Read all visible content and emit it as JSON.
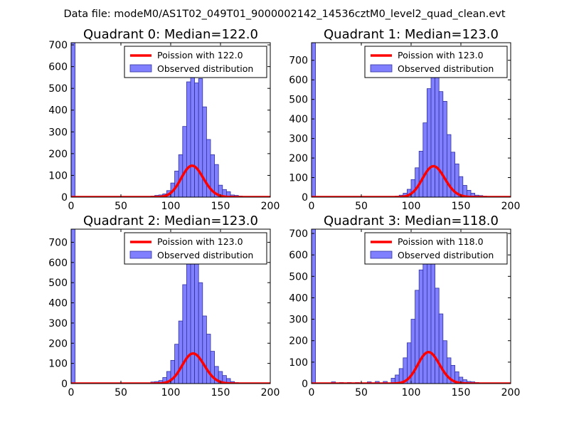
{
  "figure_title": "Data file: modeM0/AS1T02_049T01_9000002142_14536cztM0_level2_quad_clean.evt",
  "colors": {
    "bar_fill": "#8080ff",
    "bar_edge": "#3030a0",
    "poisson_line": "#ff0000",
    "poisson_line_bg": "#ff8080",
    "axes": "#000000",
    "background": "#ffffff"
  },
  "chart_data": [
    {
      "type": "bar",
      "title": "Quadrant 0: Median=122.0",
      "xlim": [
        0,
        200
      ],
      "ylim": [
        0,
        710
      ],
      "xticks": [
        0,
        50,
        100,
        150,
        200
      ],
      "yticks": [
        0,
        100,
        200,
        300,
        400,
        500,
        600,
        700
      ],
      "xtick_labels": [
        "0",
        "50",
        "100",
        "150",
        "200"
      ],
      "ytick_labels": [
        "0",
        "100",
        "200",
        "300",
        "400",
        "500",
        "600",
        "700"
      ],
      "legend": {
        "position": "top-right",
        "line_label": "Poission with 122.0",
        "bar_label": "Observed distribution"
      },
      "median": 122.0,
      "poisson_mean": 122.0,
      "poisson_scale": 4000,
      "bin_width": 4,
      "bins": [
        {
          "x": 0,
          "count": 710
        },
        {
          "x": 80,
          "count": 5
        },
        {
          "x": 84,
          "count": 8
        },
        {
          "x": 88,
          "count": 10
        },
        {
          "x": 92,
          "count": 15
        },
        {
          "x": 96,
          "count": 30
        },
        {
          "x": 100,
          "count": 65
        },
        {
          "x": 104,
          "count": 120
        },
        {
          "x": 108,
          "count": 195
        },
        {
          "x": 112,
          "count": 325
        },
        {
          "x": 116,
          "count": 530
        },
        {
          "x": 120,
          "count": 575
        },
        {
          "x": 124,
          "count": 525
        },
        {
          "x": 128,
          "count": 545
        },
        {
          "x": 132,
          "count": 415
        },
        {
          "x": 136,
          "count": 265
        },
        {
          "x": 140,
          "count": 195
        },
        {
          "x": 144,
          "count": 150
        },
        {
          "x": 148,
          "count": 55
        },
        {
          "x": 152,
          "count": 35
        },
        {
          "x": 156,
          "count": 25
        },
        {
          "x": 160,
          "count": 10
        },
        {
          "x": 164,
          "count": 8
        },
        {
          "x": 168,
          "count": 5
        },
        {
          "x": 172,
          "count": 3
        },
        {
          "x": 176,
          "count": 2
        },
        {
          "x": 180,
          "count": 1
        }
      ]
    },
    {
      "type": "bar",
      "title": "Quadrant 1: Median=123.0",
      "xlim": [
        0,
        200
      ],
      "ylim": [
        0,
        790
      ],
      "xticks": [
        0,
        50,
        100,
        150,
        200
      ],
      "yticks": [
        0,
        100,
        200,
        300,
        400,
        500,
        600,
        700
      ],
      "xtick_labels": [
        "0",
        "50",
        "100",
        "150",
        "200"
      ],
      "ytick_labels": [
        "0",
        "100",
        "200",
        "300",
        "400",
        "500",
        "600",
        "700"
      ],
      "legend": {
        "position": "top-right",
        "line_label": "Poission with 123.0",
        "bar_label": "Observed distribution"
      },
      "median": 123.0,
      "poisson_mean": 123.0,
      "poisson_scale": 4400,
      "bin_width": 4,
      "bins": [
        {
          "x": 0,
          "count": 790
        },
        {
          "x": 80,
          "count": 3
        },
        {
          "x": 84,
          "count": 5
        },
        {
          "x": 88,
          "count": 10
        },
        {
          "x": 92,
          "count": 20
        },
        {
          "x": 96,
          "count": 40
        },
        {
          "x": 100,
          "count": 90
        },
        {
          "x": 104,
          "count": 150
        },
        {
          "x": 108,
          "count": 235
        },
        {
          "x": 112,
          "count": 380
        },
        {
          "x": 116,
          "count": 555
        },
        {
          "x": 120,
          "count": 660
        },
        {
          "x": 124,
          "count": 685
        },
        {
          "x": 128,
          "count": 540
        },
        {
          "x": 132,
          "count": 490
        },
        {
          "x": 136,
          "count": 320
        },
        {
          "x": 140,
          "count": 230
        },
        {
          "x": 144,
          "count": 170
        },
        {
          "x": 148,
          "count": 105
        },
        {
          "x": 152,
          "count": 60
        },
        {
          "x": 156,
          "count": 35
        },
        {
          "x": 160,
          "count": 20
        },
        {
          "x": 164,
          "count": 10
        },
        {
          "x": 168,
          "count": 8
        },
        {
          "x": 172,
          "count": 5
        },
        {
          "x": 176,
          "count": 3
        },
        {
          "x": 180,
          "count": 2
        }
      ]
    },
    {
      "type": "bar",
      "title": "Quadrant 2: Median=123.0",
      "xlim": [
        0,
        200
      ],
      "ylim": [
        0,
        765
      ],
      "xticks": [
        0,
        50,
        100,
        150,
        200
      ],
      "yticks": [
        0,
        100,
        200,
        300,
        400,
        500,
        600,
        700
      ],
      "xtick_labels": [
        "0",
        "50",
        "100",
        "150",
        "200"
      ],
      "ytick_labels": [
        "0",
        "100",
        "200",
        "300",
        "400",
        "500",
        "600",
        "700"
      ],
      "legend": {
        "position": "top-right",
        "line_label": "Poission with 123.0",
        "bar_label": "Observed distribution"
      },
      "median": 123.0,
      "poisson_mean": 123.0,
      "poisson_scale": 4150,
      "bin_width": 4,
      "bins": [
        {
          "x": 0,
          "count": 765
        },
        {
          "x": 80,
          "count": 8
        },
        {
          "x": 84,
          "count": 10
        },
        {
          "x": 88,
          "count": 15
        },
        {
          "x": 92,
          "count": 30
        },
        {
          "x": 96,
          "count": 60
        },
        {
          "x": 100,
          "count": 115
        },
        {
          "x": 104,
          "count": 195
        },
        {
          "x": 108,
          "count": 310
        },
        {
          "x": 112,
          "count": 490
        },
        {
          "x": 116,
          "count": 640
        },
        {
          "x": 120,
          "count": 685
        },
        {
          "x": 124,
          "count": 595
        },
        {
          "x": 128,
          "count": 500
        },
        {
          "x": 132,
          "count": 335
        },
        {
          "x": 136,
          "count": 245
        },
        {
          "x": 140,
          "count": 160
        },
        {
          "x": 144,
          "count": 85
        },
        {
          "x": 148,
          "count": 60
        },
        {
          "x": 152,
          "count": 40
        },
        {
          "x": 156,
          "count": 25
        },
        {
          "x": 160,
          "count": 10
        },
        {
          "x": 164,
          "count": 5
        },
        {
          "x": 168,
          "count": 3
        },
        {
          "x": 172,
          "count": 2
        },
        {
          "x": 176,
          "count": 1
        },
        {
          "x": 180,
          "count": 1
        }
      ]
    },
    {
      "type": "bar",
      "title": "Quadrant 3: Median=118.0",
      "xlim": [
        0,
        200
      ],
      "ylim": [
        0,
        720
      ],
      "xticks": [
        0,
        50,
        100,
        150,
        200
      ],
      "yticks": [
        0,
        100,
        200,
        300,
        400,
        500,
        600,
        700
      ],
      "xtick_labels": [
        "0",
        "50",
        "100",
        "150",
        "200"
      ],
      "ytick_labels": [
        "0",
        "100",
        "200",
        "300",
        "400",
        "500",
        "600",
        "700"
      ],
      "legend": {
        "position": "top-right",
        "line_label": "Poission with 118.0",
        "bar_label": "Observed distribution"
      },
      "median": 118.0,
      "poisson_mean": 118.0,
      "poisson_scale": 4000,
      "bin_width": 4,
      "bins": [
        {
          "x": 0,
          "count": 720
        },
        {
          "x": 20,
          "count": 8
        },
        {
          "x": 28,
          "count": 5
        },
        {
          "x": 36,
          "count": 5
        },
        {
          "x": 44,
          "count": 5
        },
        {
          "x": 56,
          "count": 8
        },
        {
          "x": 64,
          "count": 10
        },
        {
          "x": 72,
          "count": 10
        },
        {
          "x": 80,
          "count": 25
        },
        {
          "x": 84,
          "count": 40
        },
        {
          "x": 88,
          "count": 70
        },
        {
          "x": 92,
          "count": 120
        },
        {
          "x": 96,
          "count": 190
        },
        {
          "x": 100,
          "count": 300
        },
        {
          "x": 104,
          "count": 435
        },
        {
          "x": 108,
          "count": 530
        },
        {
          "x": 112,
          "count": 590
        },
        {
          "x": 116,
          "count": 660
        },
        {
          "x": 120,
          "count": 620
        },
        {
          "x": 124,
          "count": 445
        },
        {
          "x": 128,
          "count": 325
        },
        {
          "x": 132,
          "count": 200
        },
        {
          "x": 136,
          "count": 120
        },
        {
          "x": 140,
          "count": 85
        },
        {
          "x": 144,
          "count": 55
        },
        {
          "x": 148,
          "count": 30
        },
        {
          "x": 152,
          "count": 18
        },
        {
          "x": 156,
          "count": 10
        },
        {
          "x": 160,
          "count": 8
        },
        {
          "x": 164,
          "count": 5
        },
        {
          "x": 168,
          "count": 3
        },
        {
          "x": 172,
          "count": 2
        },
        {
          "x": 176,
          "count": 1
        }
      ]
    }
  ]
}
